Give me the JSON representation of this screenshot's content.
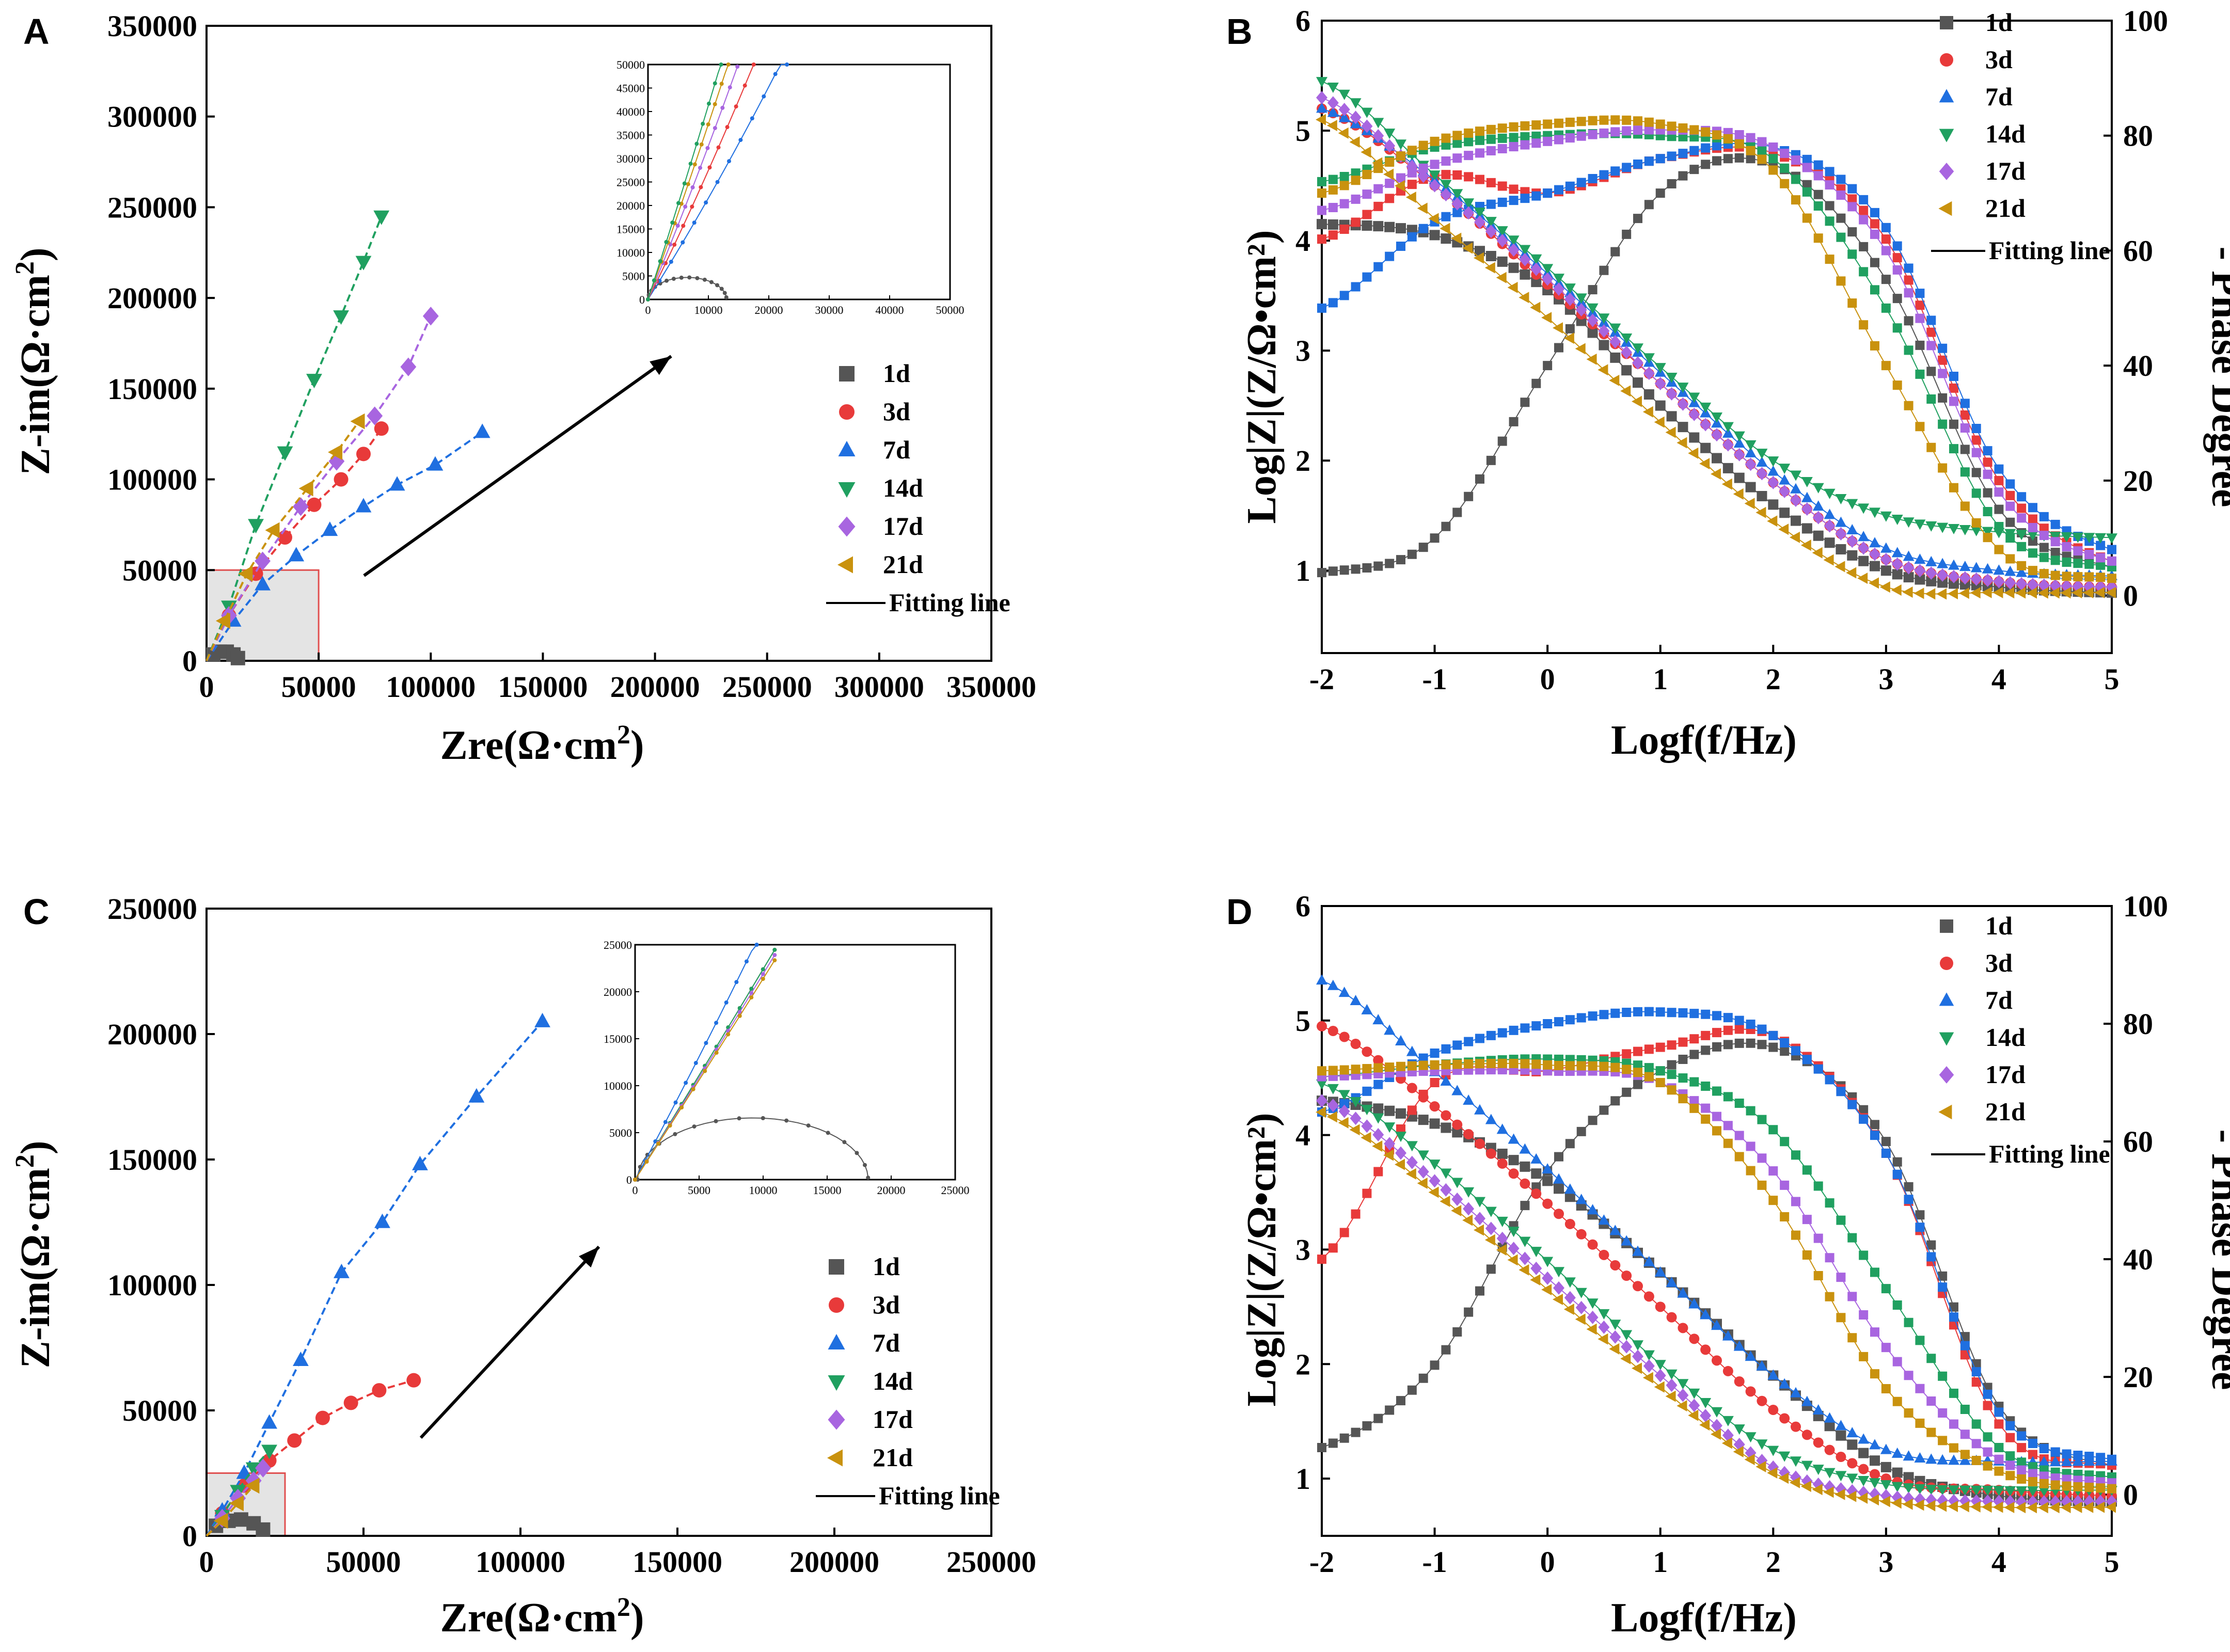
{
  "chart_data": [
    {
      "panel": "A",
      "type": "scatter",
      "title": "",
      "xlabel": "Z_re(Ω·cm²)",
      "ylabel": "Z-im(Ω·cm²)",
      "xlim": [
        0,
        350000
      ],
      "ylim": [
        0,
        350000
      ],
      "xticks": [
        0,
        50000,
        100000,
        150000,
        200000,
        250000,
        300000,
        350000
      ],
      "yticks": [
        0,
        50000,
        100000,
        150000,
        200000,
        250000,
        300000,
        350000
      ],
      "legend": [
        "1d",
        "3d",
        "7d",
        "14d",
        "17d",
        "21d",
        "Fitting line"
      ],
      "series": [
        {
          "name": "1d",
          "x": [
            3000,
            6000,
            9000,
            12000,
            14000
          ],
          "y": [
            3500,
            5000,
            5000,
            3500,
            1500
          ]
        },
        {
          "name": "3d",
          "x": [
            10000,
            22000,
            35000,
            48000,
            60000,
            70000,
            78000
          ],
          "y": [
            25000,
            48000,
            68000,
            86000,
            100000,
            114000,
            128000
          ]
        },
        {
          "name": "7d",
          "x": [
            12000,
            25000,
            40000,
            55000,
            70000,
            85000,
            102000,
            123000
          ],
          "y": [
            22000,
            42000,
            58000,
            72000,
            85000,
            97000,
            108000,
            126000
          ]
        },
        {
          "name": "14d",
          "x": [
            10000,
            22000,
            35000,
            48000,
            60000,
            70000,
            78000
          ],
          "y": [
            30000,
            75000,
            115000,
            155000,
            190000,
            220000,
            245000
          ]
        },
        {
          "name": "17d",
          "x": [
            10000,
            25000,
            42000,
            58000,
            75000,
            90000,
            100000
          ],
          "y": [
            25000,
            55000,
            85000,
            110000,
            135000,
            162000,
            190000
          ]
        },
        {
          "name": "21d",
          "x": [
            8000,
            18000,
            30000,
            45000,
            58000,
            68000
          ],
          "y": [
            22000,
            48000,
            72000,
            95000,
            115000,
            132000
          ]
        }
      ],
      "inset": {
        "xlim": [
          0,
          50000
        ],
        "ylim": [
          0,
          50000
        ],
        "xticks": [
          0,
          10000,
          20000,
          30000,
          40000,
          50000
        ],
        "yticks": [
          0,
          5000,
          10000,
          15000,
          20000,
          25000,
          30000,
          35000,
          40000,
          45000,
          50000
        ]
      }
    },
    {
      "panel": "B",
      "type": "line",
      "xlabel": "Logf(f/Hz)",
      "ylabel": "Log|Z|(Z/Ω•cm²)",
      "y2label": "- Phase Degree",
      "xlim": [
        -2,
        5
      ],
      "ylim": [
        0.25,
        6
      ],
      "y2lim": [
        -10,
        100
      ],
      "xticks": [
        -2,
        -1,
        0,
        1,
        2,
        3,
        4,
        5
      ],
      "yticks": [
        1,
        2,
        3,
        4,
        5,
        6
      ],
      "y2ticks": [
        0,
        20,
        40,
        60,
        80,
        100
      ],
      "legend": [
        "1d",
        "3d",
        "7d",
        "14d",
        "17d",
        "21d",
        "Fitting line"
      ],
      "series": [
        {
          "name": "1d",
          "x": [
            -2,
            -1,
            0,
            1,
            2,
            3,
            4,
            5
          ],
          "logZ": [
            4.15,
            4.05,
            3.55,
            2.5,
            1.6,
            1.0,
            0.85,
            0.8
          ],
          "phase": [
            4,
            10,
            40,
            70,
            75,
            55,
            15,
            5
          ]
        },
        {
          "name": "3d",
          "x": [
            -2,
            -1,
            0,
            1,
            2,
            3,
            4,
            5
          ],
          "logZ": [
            5.2,
            4.5,
            3.6,
            2.7,
            1.8,
            1.1,
            0.9,
            0.85
          ],
          "phase": [
            62,
            73,
            70,
            76,
            77,
            62,
            20,
            6
          ]
        },
        {
          "name": "7d",
          "x": [
            -2,
            -1,
            0,
            1,
            2,
            3,
            4,
            5
          ],
          "logZ": [
            5.2,
            4.55,
            3.7,
            2.8,
            1.9,
            1.2,
            1.0,
            0.95
          ],
          "phase": [
            50,
            65,
            70,
            76,
            78,
            64,
            22,
            8
          ]
        },
        {
          "name": "14d",
          "x": [
            -2,
            -1,
            0,
            1,
            2,
            3,
            4,
            5
          ],
          "logZ": [
            5.45,
            4.6,
            3.75,
            2.85,
            2.0,
            1.5,
            1.35,
            1.3
          ],
          "phase": [
            72,
            78,
            80,
            80,
            76,
            50,
            12,
            5
          ]
        },
        {
          "name": "17d",
          "x": [
            -2,
            -1,
            0,
            1,
            2,
            3,
            4,
            5
          ],
          "logZ": [
            5.3,
            4.5,
            3.65,
            2.7,
            1.8,
            1.1,
            0.9,
            0.85
          ],
          "phase": [
            67,
            75,
            79,
            81,
            78,
            60,
            18,
            6
          ]
        },
        {
          "name": "21d",
          "x": [
            -2,
            -1,
            0,
            1,
            2,
            3,
            4,
            5
          ],
          "logZ": [
            5.1,
            4.2,
            3.3,
            2.35,
            1.45,
            0.85,
            0.8,
            0.8
          ],
          "phase": [
            70,
            79,
            82,
            82,
            74,
            40,
            8,
            3
          ]
        }
      ]
    },
    {
      "panel": "C",
      "type": "scatter",
      "xlabel": "Z_re(Ω·cm²)",
      "ylabel": "Z-im(Ω·cm²)",
      "xlim": [
        0,
        250000
      ],
      "ylim": [
        0,
        250000
      ],
      "xticks": [
        0,
        50000,
        100000,
        150000,
        200000,
        250000
      ],
      "yticks": [
        0,
        50000,
        100000,
        150000,
        200000,
        250000
      ],
      "legend": [
        "1d",
        "3d",
        "7d",
        "14d",
        "17d",
        "21d",
        "Fitting line"
      ],
      "series": [
        {
          "name": "1d",
          "x": [
            3000,
            7000,
            11000,
            15000,
            18000
          ],
          "y": [
            4000,
            6000,
            6500,
            5000,
            2500
          ]
        },
        {
          "name": "3d",
          "x": [
            5000,
            12000,
            20000,
            28000,
            37000,
            46000,
            55000,
            66000
          ],
          "y": [
            9000,
            20000,
            30000,
            38000,
            47000,
            53000,
            58000,
            62000
          ]
        },
        {
          "name": "7d",
          "x": [
            5000,
            12000,
            20000,
            30000,
            43000,
            56000,
            68000,
            86000,
            107000
          ],
          "y": [
            10000,
            25000,
            45000,
            70000,
            105000,
            125000,
            148000,
            175000,
            205000
          ]
        },
        {
          "name": "14d",
          "x": [
            5000,
            10000,
            15000,
            20000
          ],
          "y": [
            8000,
            18000,
            27000,
            34000
          ]
        },
        {
          "name": "17d",
          "x": [
            5000,
            10000,
            15000,
            18000
          ],
          "y": [
            7000,
            15000,
            22000,
            27000
          ]
        },
        {
          "name": "21d",
          "x": [
            5000,
            10000,
            15000
          ],
          "y": [
            6000,
            13000,
            20000
          ]
        }
      ],
      "inset": {
        "xlim": [
          0,
          25000
        ],
        "ylim": [
          0,
          25000
        ],
        "xticks": [
          0,
          5000,
          10000,
          15000,
          20000,
          25000
        ],
        "yticks": [
          0,
          5000,
          10000,
          15000,
          20000,
          25000
        ]
      }
    },
    {
      "panel": "D",
      "type": "line",
      "xlabel": "Logf(f/Hz)",
      "ylabel": "Log|Z|(Z/Ω•cm²)",
      "y2label": "- Phase Degree",
      "xlim": [
        -2,
        5
      ],
      "ylim": [
        0.5,
        6
      ],
      "y2lim": [
        -7,
        100
      ],
      "xticks": [
        -2,
        -1,
        0,
        1,
        2,
        3,
        4,
        5
      ],
      "yticks": [
        1,
        2,
        3,
        4,
        5,
        6
      ],
      "y2ticks": [
        0,
        20,
        40,
        60,
        80,
        100
      ],
      "legend": [
        "1d",
        "3d",
        "7d",
        "14d",
        "17d",
        "21d",
        "Fitting line"
      ],
      "series": [
        {
          "name": "1d",
          "x": [
            -2,
            -1,
            0,
            1,
            2,
            3,
            4,
            5
          ],
          "logZ": [
            4.3,
            4.1,
            3.6,
            2.8,
            1.9,
            1.1,
            0.85,
            0.8
          ],
          "phase": [
            8,
            22,
            55,
            72,
            76,
            60,
            15,
            5
          ]
        },
        {
          "name": "3d",
          "x": [
            -2,
            -1,
            0,
            1,
            2,
            3,
            4,
            5
          ],
          "logZ": [
            4.95,
            4.25,
            3.4,
            2.5,
            1.6,
            1.0,
            0.9,
            0.85
          ],
          "phase": [
            40,
            70,
            72,
            76,
            78,
            58,
            12,
            5
          ]
        },
        {
          "name": "7d",
          "x": [
            -2,
            -1,
            0,
            1,
            2,
            3,
            4,
            5
          ],
          "logZ": [
            5.35,
            4.55,
            3.7,
            2.8,
            1.9,
            1.25,
            1.15,
            1.15
          ],
          "phase": [
            65,
            75,
            80,
            82,
            78,
            58,
            14,
            6
          ]
        },
        {
          "name": "14d",
          "x": [
            -2,
            -1,
            0,
            1,
            2,
            3,
            4,
            5
          ],
          "logZ": [
            4.45,
            3.75,
            2.9,
            2.0,
            1.25,
            0.95,
            0.9,
            0.9
          ],
          "phase": [
            71,
            73,
            74,
            72,
            62,
            35,
            8,
            3
          ]
        },
        {
          "name": "17d",
          "x": [
            -2,
            -1,
            0,
            1,
            2,
            3,
            4,
            5
          ],
          "logZ": [
            4.3,
            3.6,
            2.75,
            1.9,
            1.1,
            0.85,
            0.8,
            0.8
          ],
          "phase": [
            71,
            72,
            72,
            70,
            55,
            25,
            6,
            2
          ]
        },
        {
          "name": "21d",
          "x": [
            -2,
            -1,
            0,
            1,
            2,
            3,
            4,
            5
          ],
          "logZ": [
            4.2,
            3.5,
            2.65,
            1.8,
            1.05,
            0.8,
            0.75,
            0.75
          ],
          "phase": [
            72,
            73,
            73,
            70,
            50,
            18,
            4,
            1
          ]
        }
      ]
    }
  ],
  "colors": {
    "1d": "#555555",
    "3d": "#e83a3a",
    "7d": "#1f6fe0",
    "14d": "#20a060",
    "17d": "#a865e0",
    "21d": "#c9920e"
  },
  "labels": {
    "panel_a": "A",
    "panel_b": "B",
    "panel_c": "C",
    "panel_d": "D",
    "fitting_line": "Fitting line",
    "xlabel_nyquist": "Zre(Ω·cm",
    "xlabel_nyquist_sup": "2",
    "xlabel_nyquist_end": ")",
    "ylabel_nyquist": "Z-im(Ω·cm",
    "ylabel_nyquist_sup": "2",
    "ylabel_nyquist_end": ")",
    "xlabel_bode": "Logf(f/Hz)",
    "ylabel_bode": "Log|Z|(Z/Ω•cm²)",
    "y2label_bode": "- Phase Degree"
  }
}
